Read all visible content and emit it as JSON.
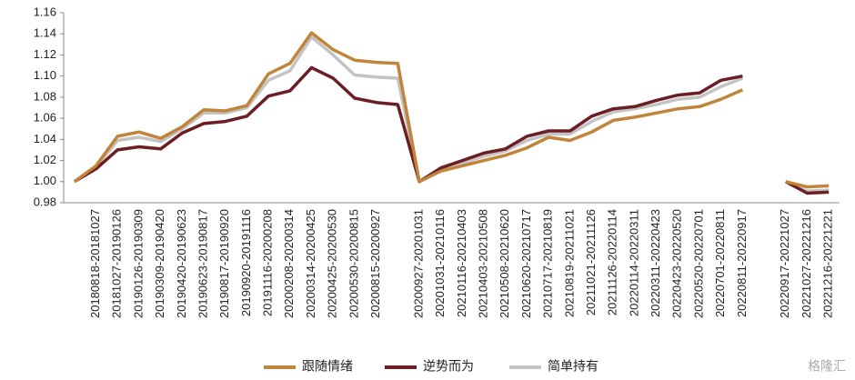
{
  "chart_data": {
    "type": "line",
    "categories": [
      null,
      "20180818-20181027",
      "20181027-20190126",
      "20190126-20190309",
      "20190309-20190420",
      "20190420-20190623",
      "20190623-20190817",
      "20190817-20190920",
      "20190920-20191116",
      "20191116-20200208",
      "20200208-20200314",
      "20200314-20200425",
      "20200425-20200530",
      "20200530-20200815",
      "20200815-20200927",
      null,
      "20200927-20201031",
      "20201031-20210116",
      "20210116-20210403",
      "20210403-20210508",
      "20210508-20210620",
      "20210620-20210717",
      "20210717-20210819",
      "20210819-20211021",
      "20211021-20211126",
      "20211126-20220114",
      "20220114-20220311",
      "20220311-20220423",
      "20220423-20220520",
      "20220520-20220701",
      "20220701-20220811",
      "20220811-20220917",
      null,
      "20220917-20221027",
      "20221027-20221216",
      "20221216-20221221"
    ],
    "series": [
      {
        "name": "跟随情绪",
        "color": "#c0853a",
        "values": [
          1.0,
          1.015,
          1.043,
          1.047,
          1.041,
          1.052,
          1.068,
          1.067,
          1.072,
          1.102,
          1.112,
          1.141,
          1.125,
          1.115,
          1.113,
          1.112,
          1.0,
          1.01,
          1.015,
          1.02,
          1.025,
          1.032,
          1.042,
          1.039,
          1.047,
          1.058,
          1.061,
          1.065,
          1.069,
          1.071,
          1.078,
          1.087,
          null,
          1.0,
          0.995,
          0.996
        ]
      },
      {
        "name": "逆势而为",
        "color": "#6b1e24",
        "values": [
          1.0,
          1.012,
          1.03,
          1.033,
          1.031,
          1.046,
          1.055,
          1.057,
          1.062,
          1.081,
          1.086,
          1.108,
          1.098,
          1.079,
          1.075,
          1.073,
          1.0,
          1.013,
          1.02,
          1.027,
          1.031,
          1.043,
          1.048,
          1.048,
          1.062,
          1.069,
          1.071,
          1.077,
          1.082,
          1.084,
          1.096,
          1.1,
          null,
          1.0,
          0.989,
          0.99
        ]
      },
      {
        "name": "简单持有",
        "color": "#c4c4c4",
        "values": [
          1.0,
          1.014,
          1.039,
          1.042,
          1.038,
          1.05,
          1.065,
          1.065,
          1.07,
          1.096,
          1.105,
          1.137,
          1.12,
          1.101,
          1.099,
          1.098,
          1.0,
          1.011,
          1.018,
          1.024,
          1.029,
          1.039,
          1.045,
          1.045,
          1.057,
          1.066,
          1.069,
          1.073,
          1.078,
          1.08,
          1.09,
          1.098,
          null,
          1.0,
          0.991,
          0.992
        ]
      }
    ],
    "ylim": [
      0.98,
      1.16
    ],
    "yticks": [
      0.98,
      {
        "value": 1.0,
        "label": "1.00"
      },
      1.02,
      1.04,
      1.06,
      1.08,
      {
        "value": 1.1,
        "label": "1.10"
      },
      1.12,
      1.14,
      1.16
    ],
    "legend": "bottom",
    "watermark": "格隆汇"
  }
}
